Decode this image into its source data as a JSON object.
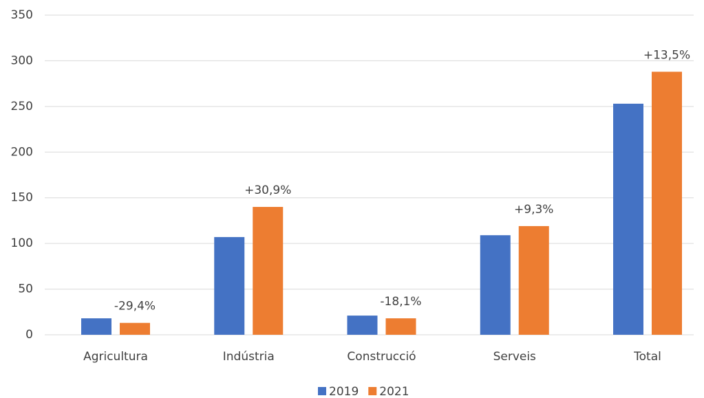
{
  "chart_data": {
    "type": "bar",
    "categories": [
      "Agricultura",
      "Indústria",
      "Construcció",
      "Serveis",
      "Total"
    ],
    "series": [
      {
        "name": "2019",
        "color": "#4472c4",
        "values": [
          18,
          107,
          21,
          109,
          253
        ]
      },
      {
        "name": "2021",
        "color": "#ed7d31",
        "values": [
          13,
          140,
          18,
          119,
          288
        ]
      }
    ],
    "change_labels": [
      "-29,4%",
      "+30,9%",
      "-18,1%",
      "+9,3%",
      "+13,5%"
    ],
    "ylim": [
      0,
      350
    ],
    "yticks": [
      0,
      50,
      100,
      150,
      200,
      250,
      300,
      350
    ],
    "grid": true,
    "legend": "bottom"
  }
}
